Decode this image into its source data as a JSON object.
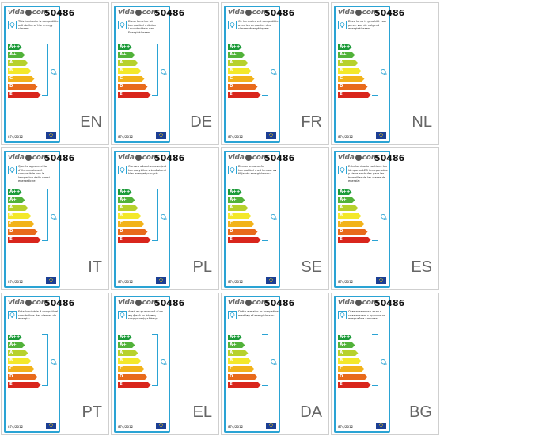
{
  "product_code": "50486",
  "logo": {
    "left": "vida",
    "right": "com"
  },
  "regulation": "874/2012",
  "energy_classes": [
    "A++",
    "A+",
    "A",
    "B",
    "C",
    "D",
    "E"
  ],
  "class_colors": [
    "#1d9b3a",
    "#52b23a",
    "#b7d12c",
    "#f3e82a",
    "#f2b31a",
    "#e86a1b",
    "#d9261c"
  ],
  "eu_flag_color": "#1c3f94",
  "labels": [
    {
      "lang": "EN",
      "text": "This luminaire is compatible with bulbs of the energy classes:"
    },
    {
      "lang": "DE",
      "text": "Diese Leuchte ist kompatibel mit den Leuchtmitteln der Energieklassen:"
    },
    {
      "lang": "FR",
      "text": "Ce luminaire est compatible avec les ampoules des classes énergétiques:"
    },
    {
      "lang": "NL",
      "text": "Deze lamp is geschikt voor peren van de volgend energieklassen:"
    },
    {
      "lang": "IT",
      "text": "Questo apparecchio d'illuminazione è compatibile con le lampadine delle classi energetiche:"
    },
    {
      "lang": "PL",
      "text": "Oprawa oświetleniowa jest kompatybilna z żarówkami klas energetycznych:"
    },
    {
      "lang": "SE",
      "text": "Denna armatur är kompatibel med lampor av följande energiklasser:"
    },
    {
      "lang": "ES",
      "text": "Esta luminaria contiene las lámparas LED incorporadas y tiene enchufes para las bombillas de las clases de energía:"
    },
    {
      "lang": "PT",
      "text": "Esta luminária é compatível com bulbos das classes de energia:"
    },
    {
      "lang": "EL",
      "text": "Αυτό το φωτιστικό είναι συμβατό με λάμπες ενεργειακής κλάσης:"
    },
    {
      "lang": "DA",
      "text": "Dette armatur er kompatibel med løg af energiklasser:"
    },
    {
      "lang": "BG",
      "text": "Осветителното тяло е съвместимо с крушки от енергийни класове:"
    }
  ]
}
